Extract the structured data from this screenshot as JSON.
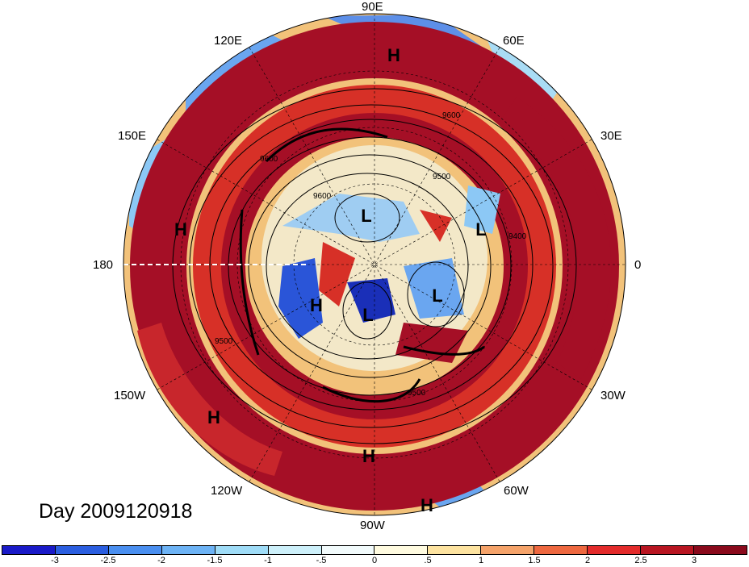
{
  "map": {
    "title": "Day 2009120918",
    "projection": "polar stereographic (north pole)",
    "longitude_labels": {
      "lon_90E": "90E",
      "lon_60E": "60E",
      "lon_120E": "120E",
      "lon_30E": "30E",
      "lon_150E": "150E",
      "lon_180": "180",
      "lon_0": "0",
      "lon_150W": "150W",
      "lon_30W": "30W",
      "lon_120W": "120W",
      "lon_60W": "60W",
      "lon_90W": "90W"
    },
    "pressure_centers": [
      "H",
      "H",
      "L",
      "L",
      "H",
      "L",
      "L",
      "H",
      "H",
      "H"
    ],
    "contour_labels": [
      "9600",
      "9600",
      "9500",
      "9500",
      "9600",
      "9500",
      "9400"
    ],
    "colors": {
      "strong_positive": "#a50f26",
      "positive": "#d73027",
      "strong_negative": "#2a3fd1",
      "negative": "#6aa6f0",
      "neutral": "#fffbe0"
    }
  },
  "colorbar": {
    "labels": [
      "-3",
      "-2.5",
      "-2",
      "-1.5",
      "-1",
      "-.5",
      "0",
      ".5",
      "1",
      "1.5",
      "2",
      "2.5",
      "3"
    ],
    "colors": [
      "#1a1ac8",
      "#2b5ee0",
      "#4a8ff0",
      "#6db3f5",
      "#9fdcf7",
      "#cdf0fa",
      "#f2fbfc",
      "#fffbe0",
      "#fde3a0",
      "#f5a36a",
      "#ee6840",
      "#e32b2b",
      "#b81521",
      "#8a0a1c"
    ]
  }
}
